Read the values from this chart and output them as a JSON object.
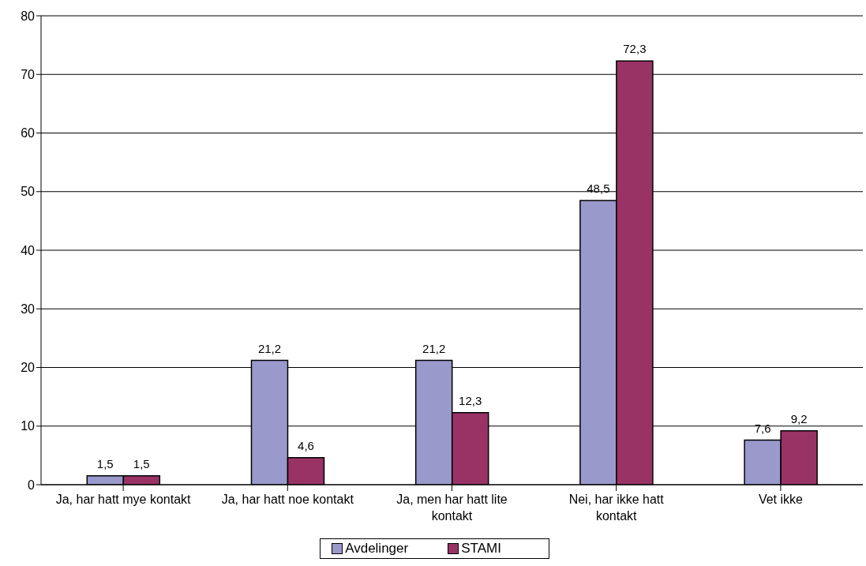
{
  "chart_data": {
    "type": "bar",
    "categories": [
      "Ja, har hatt mye kontakt",
      "Ja, har hatt noe kontakt",
      "Ja, men har hatt lite kontakt",
      "Nei, har ikke hatt kontakt",
      "Vet ikke"
    ],
    "series": [
      {
        "name": "Avdelinger",
        "color": "#9999cc",
        "values": [
          1.5,
          21.2,
          21.2,
          48.5,
          7.6
        ],
        "value_labels": [
          "1,5",
          "21,2",
          "21,2",
          "48,5",
          "7,6"
        ]
      },
      {
        "name": "STAMI",
        "color": "#993366",
        "values": [
          1.5,
          4.6,
          12.3,
          72.3,
          9.2
        ],
        "value_labels": [
          "1,5",
          "4,6",
          "12,3",
          "72,3",
          "9,2"
        ]
      }
    ],
    "ylim": [
      0,
      80
    ],
    "yticks": [
      0,
      10,
      20,
      30,
      40,
      50,
      60,
      70,
      80
    ],
    "grid": "y",
    "legend": "bottom"
  }
}
